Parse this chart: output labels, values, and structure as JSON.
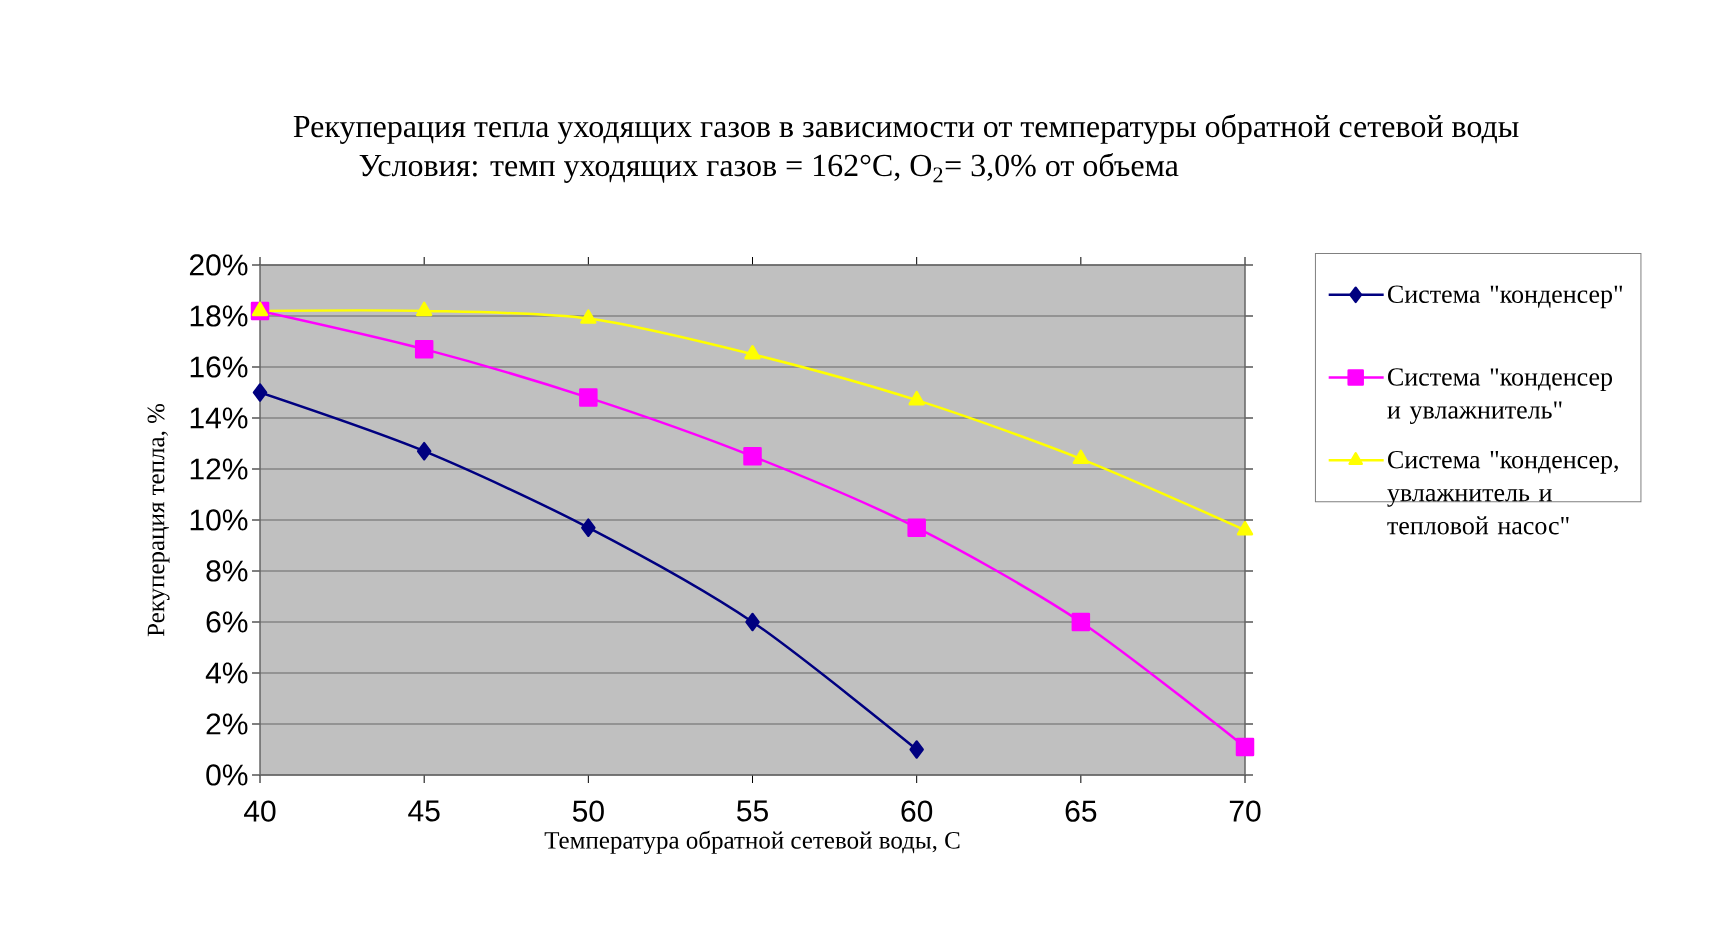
{
  "chart_data": {
    "type": "line",
    "title": "Рекуперация тепла уходящих газов в зависимости от температуры обратной сетевой воды",
    "subtitle": "Условия: темп уходящих газов = 162°C, O$_{2}$= 3,0% от объема",
    "xlabel": "Температура обратной сетевой воды, С",
    "ylabel": "Рекуперация тепла, %",
    "x": [
      40,
      45,
      50,
      55,
      60,
      65,
      70
    ],
    "series": [
      {
        "name": "Система \"конденсер\"",
        "color": "#000080",
        "marker": "diamond",
        "values": [
          15.0,
          12.7,
          9.7,
          6.0,
          1.0,
          null,
          null
        ]
      },
      {
        "name": "Система \"конденсер и увлажнитель\"",
        "color": "#ff00ff",
        "marker": "square",
        "values": [
          18.2,
          16.7,
          14.8,
          12.5,
          9.7,
          6.0,
          1.1
        ]
      },
      {
        "name": "Система \"конденсер, увлажнитель и тепловой насос\"",
        "color": "#ffff00",
        "marker": "triangle",
        "values": [
          18.2,
          18.2,
          17.9,
          16.5,
          14.7,
          12.4,
          9.6
        ]
      }
    ],
    "xlim": [
      40,
      70
    ],
    "xticks": [
      40,
      45,
      50,
      55,
      60,
      65,
      70
    ],
    "ylim": [
      0,
      20
    ],
    "yticks": [
      {
        "value": 0,
        "label": "0%"
      },
      {
        "value": 2,
        "label": "2%"
      },
      {
        "value": 4,
        "label": "4%"
      },
      {
        "value": 6,
        "label": "6%"
      },
      {
        "value": 8,
        "label": "8%"
      },
      {
        "value": 10,
        "label": "10%"
      },
      {
        "value": 12,
        "label": "12%"
      },
      {
        "value": 14,
        "label": "14%"
      },
      {
        "value": 16,
        "label": "16%"
      },
      {
        "value": 18,
        "label": "18%"
      },
      {
        "value": 20,
        "label": "20%"
      }
    ],
    "grid": "y",
    "legend": "right",
    "line_style": "solid"
  }
}
